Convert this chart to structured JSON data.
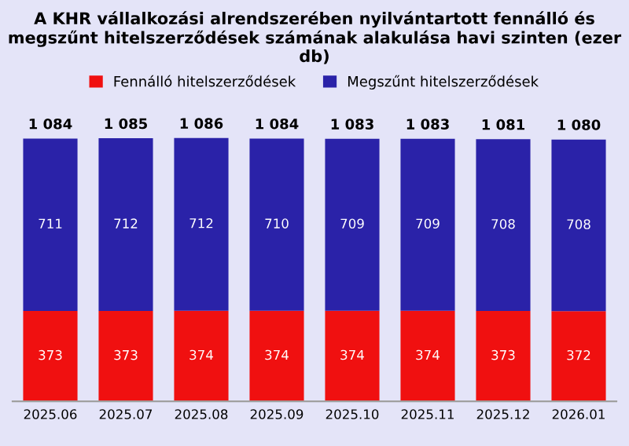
{
  "chart_data": {
    "type": "bar",
    "title": "A KHR vállalkozási alrendszerében nyilvántartott fennálló és megszűnt hitelszerződések számának alakulása havi szinten (ezer db)",
    "categories": [
      "2025.06",
      "2025.07",
      "2025.08",
      "2025.09",
      "2025.10",
      "2025.11",
      "2025.12",
      "2026.01"
    ],
    "stacked": true,
    "data_labels": true,
    "legend": "top",
    "grid": false,
    "series": [
      {
        "name": "Fennálló hitelszerződések",
        "color": "#f01010",
        "values": [
          373,
          373,
          374,
          374,
          374,
          374,
          373,
          372
        ]
      },
      {
        "name": "Megszűnt hitelszerződések",
        "color": "#2a22a8",
        "values": [
          711,
          712,
          712,
          710,
          709,
          709,
          708,
          708
        ]
      }
    ],
    "totals": [
      "1 084",
      "1 085",
      "1 086",
      "1 084",
      "1 083",
      "1 083",
      "1 081",
      "1 080"
    ]
  }
}
